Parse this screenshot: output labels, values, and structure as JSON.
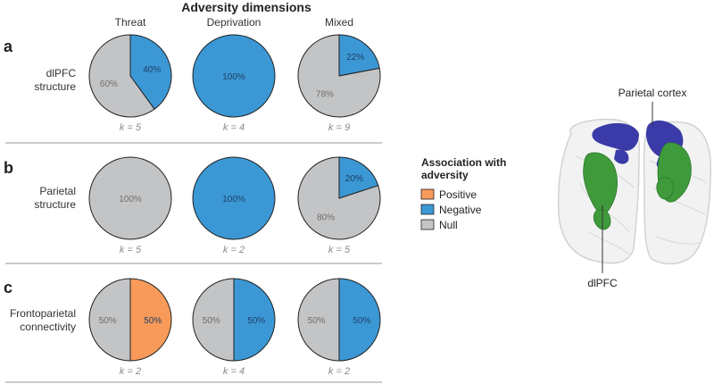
{
  "chart_data": {
    "type": "pie",
    "title": "Adversity dimensions",
    "columns": [
      "Threat",
      "Deprivation",
      "Mixed"
    ],
    "legend": {
      "title_lines": [
        "Association with",
        "adversity"
      ],
      "placement": "right",
      "entries": [
        {
          "key": "positive",
          "label": "Positive",
          "color": "#f79a5a"
        },
        {
          "key": "negative",
          "label": "Negative",
          "color": "#3b98d4"
        },
        {
          "key": "null",
          "label": "Null",
          "color": "#c3c4c6"
        }
      ]
    },
    "rows": [
      {
        "letter": "a",
        "label_lines": [
          "dlPFC",
          "structure"
        ],
        "pies": [
          {
            "k": "k = 5",
            "slices": [
              {
                "category": "negative",
                "value": 40,
                "label": "40%"
              },
              {
                "category": "null",
                "value": 60,
                "label": "60%"
              }
            ]
          },
          {
            "k": "k = 4",
            "slices": [
              {
                "category": "negative",
                "value": 100,
                "label": "100%"
              }
            ]
          },
          {
            "k": "k = 9",
            "slices": [
              {
                "category": "negative",
                "value": 22,
                "label": "22%"
              },
              {
                "category": "null",
                "value": 78,
                "label": "78%"
              }
            ]
          }
        ]
      },
      {
        "letter": "b",
        "label_lines": [
          "Parietal",
          "structure"
        ],
        "pies": [
          {
            "k": "k = 5",
            "slices": [
              {
                "category": "null",
                "value": 100,
                "label": "100%"
              }
            ]
          },
          {
            "k": "k = 2",
            "slices": [
              {
                "category": "negative",
                "value": 100,
                "label": "100%"
              }
            ]
          },
          {
            "k": "k = 5",
            "slices": [
              {
                "category": "negative",
                "value": 20,
                "label": "20%"
              },
              {
                "category": "null",
                "value": 80,
                "label": "80%"
              }
            ]
          }
        ]
      },
      {
        "letter": "c",
        "label_lines": [
          "Frontoparietal",
          "connectivity"
        ],
        "pies": [
          {
            "k": "k = 2",
            "slices": [
              {
                "category": "positive",
                "value": 50,
                "label": "50%"
              },
              {
                "category": "null",
                "value": 50,
                "label": "50%"
              }
            ]
          },
          {
            "k": "k = 4",
            "slices": [
              {
                "category": "negative",
                "value": 50,
                "label": "50%"
              },
              {
                "category": "null",
                "value": 50,
                "label": "50%"
              }
            ]
          },
          {
            "k": "k = 2",
            "slices": [
              {
                "category": "negative",
                "value": 50,
                "label": "50%"
              },
              {
                "category": "null",
                "value": 50,
                "label": "50%"
              }
            ]
          }
        ]
      }
    ]
  },
  "brain": {
    "label_parietal": "Parietal cortex",
    "label_dlpfc": "dlPFC",
    "colors": {
      "parietal": "#3a3aa8",
      "dlpfc": "#3f9a3c",
      "outline": "#cfd0d2"
    }
  }
}
